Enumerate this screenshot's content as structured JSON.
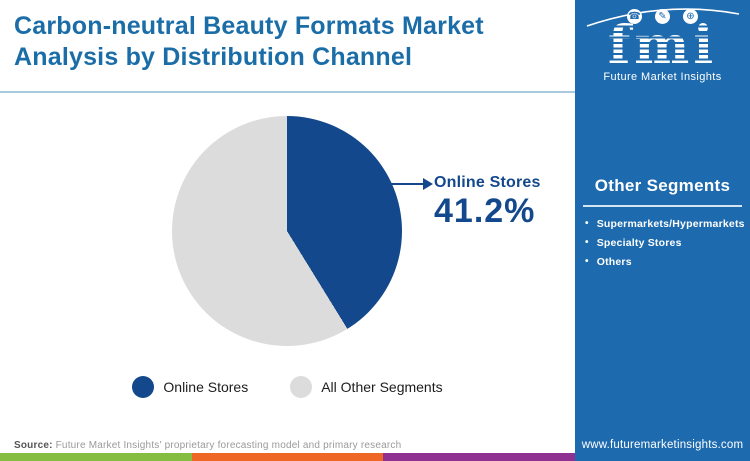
{
  "header": {
    "title_line1": "Carbon-neutral Beauty Formats Market",
    "title_line2": "Analysis by Distribution Channel"
  },
  "chart_data": {
    "type": "pie",
    "title": "Carbon-neutral Beauty Formats Market Analysis by Distribution Channel",
    "slices": [
      {
        "label": "Online Stores",
        "value": 41.2,
        "color": "#14488c"
      },
      {
        "label": "All Other Segments",
        "value": 58.8,
        "color": "#dcdcdc"
      }
    ],
    "start_angle_deg": 0,
    "direction": "clockwise",
    "callout": {
      "label": "Online Stores",
      "value_text": "41.2%"
    },
    "legend_position": "bottom"
  },
  "sidebar": {
    "logo": {
      "text": "fmi",
      "subtext": "Future Market Insights",
      "icons": [
        "phone-icon",
        "pencil-icon",
        "globe-icon"
      ]
    },
    "other_segments": {
      "heading": "Other Segments",
      "items": [
        "Supermarkets/Hypermarkets",
        "Specialty Stores",
        "Others"
      ]
    },
    "website": "www.futuremarketinsights.com"
  },
  "footer": {
    "source_label": "Source:",
    "source_text": " Future Market Insights' proprietary forecasting model and primary research",
    "stripe_colors": [
      "#84bd41",
      "#ef6724",
      "#8e3191"
    ]
  },
  "colors": {
    "sidebar_blue": "#1d6aae",
    "title_blue": "#1b6da8",
    "navy": "#14488c",
    "slice_gray": "#dcdcdc",
    "header_rule": "#aac8de"
  }
}
